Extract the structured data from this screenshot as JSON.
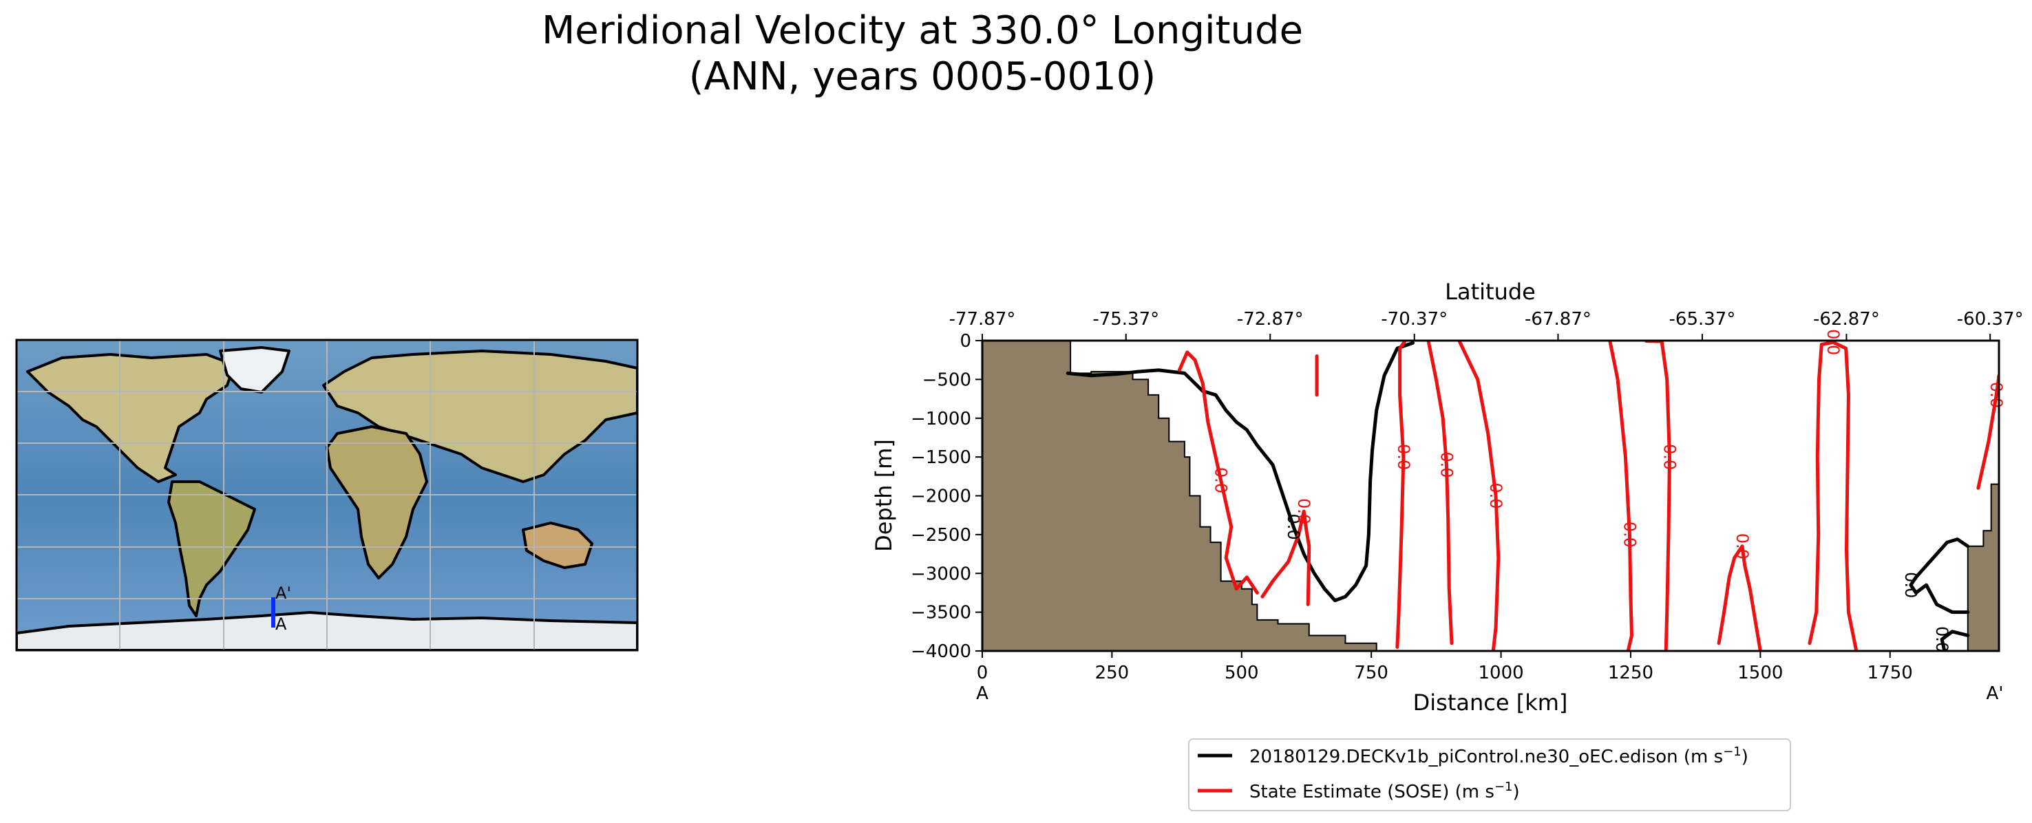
{
  "figure": {
    "title_line1": "Meridional Velocity at 330.0° Longitude",
    "title_line2": "(ANN, years 0005-0010)"
  },
  "inset_map": {
    "transect_start_label": "A",
    "transect_end_label": "A'",
    "transect_color": "#0a2cff"
  },
  "chart_data": {
    "type": "line",
    "plot_kind": "contour",
    "xlabel": "Distance [km]",
    "ylabel": "Depth [m]",
    "top_xlabel": "Latitude",
    "xlim": [
      0,
      1960
    ],
    "ylim": [
      -4000,
      0
    ],
    "x_ticks": [
      0,
      250,
      500,
      750,
      1000,
      1250,
      1500,
      1750
    ],
    "x_tick_labels": [
      "0",
      "250",
      "500",
      "750",
      "1000",
      "1250",
      "1500",
      "1750"
    ],
    "y_ticks": [
      0,
      -500,
      -1000,
      -1500,
      -2000,
      -2500,
      -3000,
      -3500,
      -4000
    ],
    "y_tick_labels": [
      "0",
      "−500",
      "−1000",
      "−1500",
      "−2000",
      "−2500",
      "−3000",
      "−3500",
      "−4000"
    ],
    "top_ticks_km": [
      0,
      277,
      555,
      833,
      1110,
      1388,
      1666,
      1943
    ],
    "top_tick_labels": [
      "-77.87°",
      "-75.37°",
      "-72.87°",
      "-70.37°",
      "-67.87°",
      "-65.37°",
      "-62.87°",
      "-60.37°"
    ],
    "start_label": "A",
    "end_label": "A'",
    "land_color": "#8e7f65",
    "contour_label": "0.0",
    "bathymetry": [
      [
        0,
        0
      ],
      [
        170,
        0
      ],
      [
        170,
        -420
      ],
      [
        210,
        -420
      ],
      [
        210,
        -400
      ],
      [
        290,
        -400
      ],
      [
        290,
        -500
      ],
      [
        320,
        -500
      ],
      [
        320,
        -700
      ],
      [
        340,
        -700
      ],
      [
        340,
        -1000
      ],
      [
        360,
        -1000
      ],
      [
        360,
        -1300
      ],
      [
        390,
        -1300
      ],
      [
        390,
        -1500
      ],
      [
        400,
        -1500
      ],
      [
        400,
        -2000
      ],
      [
        420,
        -2000
      ],
      [
        420,
        -2400
      ],
      [
        440,
        -2400
      ],
      [
        440,
        -2600
      ],
      [
        460,
        -2600
      ],
      [
        460,
        -3100
      ],
      [
        500,
        -3100
      ],
      [
        500,
        -3200
      ],
      [
        520,
        -3200
      ],
      [
        520,
        -3400
      ],
      [
        530,
        -3400
      ],
      [
        530,
        -3600
      ],
      [
        570,
        -3600
      ],
      [
        570,
        -3650
      ],
      [
        630,
        -3650
      ],
      [
        630,
        -3800
      ],
      [
        700,
        -3800
      ],
      [
        700,
        -3900
      ],
      [
        760,
        -3900
      ],
      [
        760,
        -4000
      ],
      [
        0,
        -4000
      ]
    ],
    "bathymetry_right": [
      [
        1900,
        -4000
      ],
      [
        1900,
        -2650
      ],
      [
        1930,
        -2650
      ],
      [
        1930,
        -2450
      ],
      [
        1945,
        -2450
      ],
      [
        1945,
        -1850
      ],
      [
        1960,
        -1850
      ],
      [
        1960,
        -4000
      ]
    ],
    "series": [
      {
        "name": "20180129.DECKv1b_piControl.ne30_oEC.edison (m s$^{-1}$)",
        "legend_text": "20180129.DECKv1b_piControl.ne30_oEC.edison (m s",
        "color": "#000000",
        "contours": [
          {
            "points": [
              [
                165,
                -420
              ],
              [
                210,
                -450
              ],
              [
                260,
                -430
              ],
              [
                300,
                -400
              ],
              [
                340,
                -380
              ],
              [
                390,
                -420
              ],
              [
                425,
                -650
              ],
              [
                450,
                -700
              ],
              [
                470,
                -900
              ],
              [
                490,
                -1050
              ],
              [
                510,
                -1150
              ],
              [
                530,
                -1350
              ],
              [
                560,
                -1600
              ],
              [
                580,
                -2000
              ],
              [
                600,
                -2400
              ],
              [
                620,
                -2750
              ],
              [
                640,
                -3000
              ],
              [
                660,
                -3200
              ],
              [
                680,
                -3350
              ],
              [
                700,
                -3300
              ],
              [
                720,
                -3150
              ],
              [
                740,
                -2900
              ],
              [
                745,
                -2500
              ],
              [
                748,
                -1800
              ],
              [
                752,
                -1400
              ],
              [
                760,
                -900
              ],
              [
                775,
                -450
              ],
              [
                800,
                -100
              ],
              [
                830,
                -30
              ]
            ]
          },
          {
            "points": [
              [
                1900,
                -2650
              ],
              [
                1880,
                -2560
              ],
              [
                1860,
                -2600
              ],
              [
                1840,
                -2750
              ],
              [
                1820,
                -2900
              ],
              [
                1800,
                -3050
              ],
              [
                1790,
                -3150
              ],
              [
                1800,
                -3250
              ],
              [
                1820,
                -3150
              ],
              [
                1840,
                -3400
              ],
              [
                1870,
                -3500
              ],
              [
                1900,
                -3500
              ]
            ]
          },
          {
            "points": [
              [
                1900,
                -3800
              ],
              [
                1870,
                -3750
              ],
              [
                1850,
                -3850
              ],
              [
                1855,
                -4000
              ]
            ]
          }
        ]
      },
      {
        "name": "State Estimate (SOSE) (m s$^{-1}$)",
        "legend_text": "State Estimate (SOSE) (m s",
        "color": "#ee1111",
        "contours": [
          {
            "points": [
              [
                380,
                -380
              ],
              [
                395,
                -150
              ],
              [
                410,
                -250
              ],
              [
                425,
                -550
              ],
              [
                435,
                -1050
              ],
              [
                450,
                -1500
              ],
              [
                460,
                -1800
              ],
              [
                470,
                -2100
              ],
              [
                480,
                -2400
              ],
              [
                470,
                -2800
              ],
              [
                490,
                -3200
              ],
              [
                510,
                -3050
              ],
              [
                530,
                -3250
              ]
            ]
          },
          {
            "points": [
              [
                540,
                -3300
              ],
              [
                560,
                -3100
              ],
              [
                590,
                -2850
              ],
              [
                610,
                -2500
              ],
              [
                620,
                -2200
              ],
              [
                625,
                -2450
              ],
              [
                630,
                -2650
              ],
              [
                628,
                -3400
              ]
            ]
          },
          {
            "points": [
              [
                645,
                -200
              ],
              [
                645,
                -700
              ]
            ]
          },
          {
            "points": [
              [
                800,
                -3950
              ],
              [
                803,
                -3500
              ],
              [
                808,
                -2500
              ],
              [
                812,
                -1500
              ],
              [
                805,
                -700
              ],
              [
                805,
                -100
              ],
              [
                815,
                -5
              ]
            ]
          },
          {
            "points": [
              [
                860,
                -5
              ],
              [
                875,
                -500
              ],
              [
                888,
                -1000
              ],
              [
                895,
                -1600
              ],
              [
                898,
                -2300
              ],
              [
                900,
                -3200
              ],
              [
                905,
                -3900
              ]
            ]
          },
          {
            "points": [
              [
                920,
                -10
              ],
              [
                955,
                -500
              ],
              [
                975,
                -1200
              ],
              [
                990,
                -2000
              ],
              [
                995,
                -2800
              ],
              [
                990,
                -3700
              ],
              [
                985,
                -4000
              ]
            ]
          },
          {
            "points": [
              [
                1210,
                -5
              ],
              [
                1225,
                -500
              ],
              [
                1240,
                -1500
              ],
              [
                1248,
                -2500
              ],
              [
                1250,
                -3300
              ],
              [
                1252,
                -3800
              ],
              [
                1245,
                -4000
              ]
            ]
          },
          {
            "points": [
              [
                1280,
                -5
              ],
              [
                1310,
                -10
              ],
              [
                1320,
                -500
              ],
              [
                1325,
                -1500
              ],
              [
                1323,
                -2500
              ],
              [
                1320,
                -3500
              ],
              [
                1318,
                -4000
              ]
            ]
          },
          {
            "points": [
              [
                1420,
                -3900
              ],
              [
                1430,
                -3500
              ],
              [
                1440,
                -3050
              ],
              [
                1450,
                -2800
              ],
              [
                1465,
                -2650
              ],
              [
                1470,
                -2900
              ],
              [
                1480,
                -3200
              ],
              [
                1490,
                -3600
              ],
              [
                1500,
                -4000
              ]
            ]
          },
          {
            "points": [
              [
                1595,
                -3900
              ],
              [
                1608,
                -3500
              ],
              [
                1612,
                -2500
              ],
              [
                1610,
                -1500
              ],
              [
                1613,
                -500
              ],
              [
                1618,
                -50
              ],
              [
                1640,
                -20
              ],
              [
                1665,
                -100
              ],
              [
                1670,
                -700
              ],
              [
                1668,
                -1700
              ],
              [
                1666,
                -2700
              ],
              [
                1670,
                -3500
              ],
              [
                1685,
                -4000
              ]
            ]
          },
          {
            "points": [
              [
                1920,
                -1900
              ],
              [
                1940,
                -1300
              ],
              [
                1955,
                -700
              ],
              [
                1960,
                -450
              ]
            ]
          }
        ]
      }
    ],
    "legend_position": "below-center"
  }
}
